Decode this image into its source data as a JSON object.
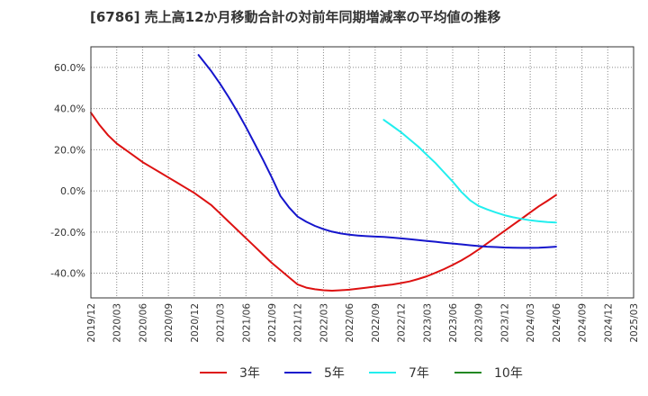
{
  "chart_data": {
    "type": "line",
    "title": "[6786]  売上高12か月移動合計の対前年同期増減率の平均値の推移",
    "xlabel": "",
    "ylabel": "",
    "ylim": [
      -52,
      70
    ],
    "y_ticks": [
      {
        "value": 60,
        "label": "60.0%"
      },
      {
        "value": 40,
        "label": "40.0%"
      },
      {
        "value": 20,
        "label": "20.0%"
      },
      {
        "value": 0,
        "label": "0.0%"
      },
      {
        "value": -20,
        "label": "-20.0%"
      },
      {
        "value": -40,
        "label": "-40.0%"
      }
    ],
    "x_ticks": [
      "2019/12",
      "2020/03",
      "2020/06",
      "2020/09",
      "2020/12",
      "2021/03",
      "2021/06",
      "2021/09",
      "2021/12",
      "2022/03",
      "2022/06",
      "2022/09",
      "2022/12",
      "2023/03",
      "2023/06",
      "2023/09",
      "2023/12",
      "2024/03",
      "2024/06",
      "2024/09",
      "2024/12",
      "2025/03"
    ],
    "grid": true,
    "legend_position": "bottom",
    "series": [
      {
        "name": "3年",
        "color": "#dd1111",
        "points": [
          [
            0,
            38
          ],
          [
            1,
            32
          ],
          [
            2,
            27
          ],
          [
            3,
            23
          ],
          [
            4,
            20
          ],
          [
            5,
            17
          ],
          [
            6,
            14
          ],
          [
            7,
            11.5
          ],
          [
            8,
            9
          ],
          [
            9,
            6.5
          ],
          [
            10,
            4
          ],
          [
            11,
            1.5
          ],
          [
            12,
            -1
          ],
          [
            13,
            -4
          ],
          [
            14,
            -7
          ],
          [
            15,
            -11
          ],
          [
            16,
            -15
          ],
          [
            17,
            -19
          ],
          [
            18,
            -23
          ],
          [
            19,
            -27
          ],
          [
            20,
            -31
          ],
          [
            21,
            -35
          ],
          [
            22,
            -38.5
          ],
          [
            23,
            -42
          ],
          [
            24,
            -45.5
          ],
          [
            25,
            -47
          ],
          [
            26,
            -47.8
          ],
          [
            27,
            -48.3
          ],
          [
            28,
            -48.5
          ],
          [
            29,
            -48.3
          ],
          [
            30,
            -48
          ],
          [
            31,
            -47.5
          ],
          [
            32,
            -47
          ],
          [
            33,
            -46.5
          ],
          [
            34,
            -46
          ],
          [
            35,
            -45.5
          ],
          [
            36,
            -44.8
          ],
          [
            37,
            -44
          ],
          [
            38,
            -42.8
          ],
          [
            39,
            -41.5
          ],
          [
            40,
            -39.8
          ],
          [
            41,
            -38
          ],
          [
            42,
            -36
          ],
          [
            43,
            -33.8
          ],
          [
            44,
            -31.3
          ],
          [
            45,
            -28.5
          ],
          [
            46,
            -25.5
          ],
          [
            47,
            -22.5
          ],
          [
            48,
            -19.5
          ],
          [
            49,
            -16.5
          ],
          [
            50,
            -13.5
          ],
          [
            51,
            -10.5
          ],
          [
            52,
            -7.5
          ],
          [
            53,
            -4.8
          ],
          [
            54,
            -2
          ]
        ]
      },
      {
        "name": "5年",
        "color": "#1515cc",
        "points": [
          [
            12.5,
            66
          ],
          [
            14,
            58
          ],
          [
            15,
            52
          ],
          [
            16,
            45.5
          ],
          [
            17,
            38.5
          ],
          [
            18,
            31
          ],
          [
            19,
            23
          ],
          [
            20,
            15
          ],
          [
            21,
            6.5
          ],
          [
            22,
            -2.5
          ],
          [
            23,
            -8
          ],
          [
            24,
            -12.5
          ],
          [
            25,
            -15
          ],
          [
            26,
            -17
          ],
          [
            27,
            -18.6
          ],
          [
            28,
            -19.8
          ],
          [
            29,
            -20.7
          ],
          [
            30,
            -21.3
          ],
          [
            31,
            -21.7
          ],
          [
            32,
            -22
          ],
          [
            33,
            -22.2
          ],
          [
            34,
            -22.4
          ],
          [
            35,
            -22.7
          ],
          [
            36,
            -23.1
          ],
          [
            37,
            -23.5
          ],
          [
            38,
            -23.9
          ],
          [
            39,
            -24.3
          ],
          [
            40,
            -24.7
          ],
          [
            41,
            -25.2
          ],
          [
            42,
            -25.6
          ],
          [
            43,
            -26
          ],
          [
            44,
            -26.4
          ],
          [
            45,
            -26.8
          ],
          [
            46,
            -27.1
          ],
          [
            47,
            -27.3
          ],
          [
            48,
            -27.5
          ],
          [
            49,
            -27.6
          ],
          [
            50,
            -27.7
          ],
          [
            51,
            -27.7
          ],
          [
            52,
            -27.6
          ],
          [
            53,
            -27.4
          ],
          [
            54,
            -27.1
          ]
        ]
      },
      {
        "name": "7年",
        "color": "#22eeee",
        "points": [
          [
            34,
            34.5
          ],
          [
            35,
            31.5
          ],
          [
            36,
            28.5
          ],
          [
            37,
            25
          ],
          [
            38,
            21.5
          ],
          [
            39,
            17.5
          ],
          [
            40,
            13.5
          ],
          [
            41,
            9
          ],
          [
            42,
            4.5
          ],
          [
            43,
            -0.5
          ],
          [
            44,
            -4.5
          ],
          [
            45,
            -7.3
          ],
          [
            46,
            -9
          ],
          [
            47,
            -10.5
          ],
          [
            48,
            -11.8
          ],
          [
            49,
            -12.8
          ],
          [
            50,
            -13.6
          ],
          [
            51,
            -14.3
          ],
          [
            52,
            -14.8
          ],
          [
            53,
            -15.2
          ],
          [
            54,
            -15.4
          ]
        ]
      },
      {
        "name": "10年",
        "color": "#228822",
        "points": []
      }
    ]
  }
}
